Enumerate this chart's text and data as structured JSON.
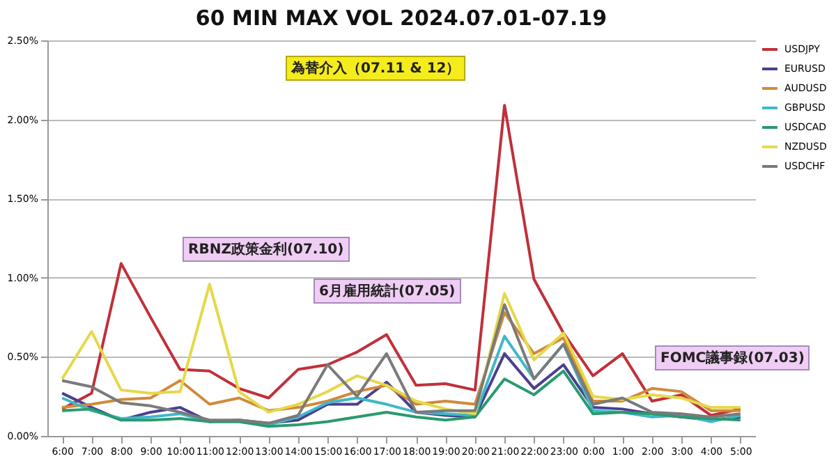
{
  "chart_data": {
    "type": "line",
    "title": "60 MIN MAX VOL 2024.07.01-07.19",
    "categories": [
      "6:00",
      "7:00",
      "8:00",
      "9:00",
      "10:00",
      "11:00",
      "12:00",
      "13:00",
      "14:00",
      "15:00",
      "16:00",
      "17:00",
      "18:00",
      "19:00",
      "20:00",
      "21:00",
      "22:00",
      "23:00",
      "0:00",
      "1:00",
      "2:00",
      "3:00",
      "4:00",
      "5:00"
    ],
    "series": [
      {
        "name": "USDJPY",
        "color": "#c0303a",
        "values": [
          0.17,
          0.27,
          1.09,
          0.75,
          0.42,
          0.41,
          0.3,
          0.24,
          0.42,
          0.45,
          0.53,
          0.64,
          0.32,
          0.33,
          0.29,
          2.09,
          0.99,
          0.65,
          0.38,
          0.52,
          0.22,
          0.26,
          0.13,
          0.17
        ]
      },
      {
        "name": "EURUSD",
        "color": "#4b3f8f",
        "values": [
          0.27,
          0.18,
          0.1,
          0.15,
          0.18,
          0.09,
          0.1,
          0.08,
          0.1,
          0.2,
          0.2,
          0.34,
          0.15,
          0.13,
          0.12,
          0.52,
          0.3,
          0.45,
          0.18,
          0.17,
          0.14,
          0.12,
          0.1,
          0.12
        ]
      },
      {
        "name": "AUDUSD",
        "color": "#d08a3a",
        "values": [
          0.18,
          0.2,
          0.23,
          0.24,
          0.35,
          0.2,
          0.24,
          0.16,
          0.18,
          0.22,
          0.28,
          0.32,
          0.2,
          0.22,
          0.2,
          0.78,
          0.52,
          0.62,
          0.22,
          0.22,
          0.3,
          0.28,
          0.16,
          0.16
        ]
      },
      {
        "name": "GBPUSD",
        "color": "#3fb8c8",
        "values": [
          0.24,
          0.16,
          0.11,
          0.12,
          0.14,
          0.09,
          0.09,
          0.07,
          0.12,
          0.21,
          0.24,
          0.2,
          0.15,
          0.14,
          0.13,
          0.63,
          0.36,
          0.58,
          0.16,
          0.15,
          0.12,
          0.13,
          0.09,
          0.13
        ]
      },
      {
        "name": "USDCAD",
        "color": "#2a9a6e",
        "values": [
          0.16,
          0.17,
          0.1,
          0.1,
          0.11,
          0.09,
          0.09,
          0.06,
          0.07,
          0.09,
          0.12,
          0.15,
          0.12,
          0.1,
          0.12,
          0.36,
          0.26,
          0.41,
          0.14,
          0.15,
          0.14,
          0.12,
          0.11,
          0.1
        ]
      },
      {
        "name": "NZDUSD",
        "color": "#e6d84a",
        "values": [
          0.36,
          0.66,
          0.29,
          0.27,
          0.28,
          0.96,
          0.28,
          0.15,
          0.2,
          0.28,
          0.38,
          0.32,
          0.22,
          0.17,
          0.14,
          0.9,
          0.48,
          0.65,
          0.25,
          0.23,
          0.26,
          0.24,
          0.18,
          0.18
        ]
      },
      {
        "name": "USDCHF",
        "color": "#7a7a7a",
        "values": [
          0.35,
          0.31,
          0.21,
          0.19,
          0.15,
          0.1,
          0.1,
          0.08,
          0.13,
          0.45,
          0.25,
          0.52,
          0.15,
          0.16,
          0.16,
          0.83,
          0.36,
          0.58,
          0.2,
          0.24,
          0.15,
          0.14,
          0.12,
          0.14
        ]
      }
    ],
    "ylim": [
      0,
      2.5
    ],
    "yticks": [
      {
        "value": 0,
        "label": "0.00%"
      },
      {
        "value": 0.5,
        "label": "0.50%"
      },
      {
        "value": 1,
        "label": "1.00%"
      },
      {
        "value": 1.5,
        "label": "1.50%"
      },
      {
        "value": 2,
        "label": "2.00%"
      },
      {
        "value": 2.5,
        "label": "2.50%"
      }
    ],
    "annotations": [
      "為替介入（07.11 & 12）",
      "RBNZ政策金利(07.10)",
      "6月雇用統計(07.05)",
      "FOMC議事録(07.03)"
    ],
    "grid": "y",
    "legend": "right",
    "marker": "none",
    "line_style": "solid"
  }
}
